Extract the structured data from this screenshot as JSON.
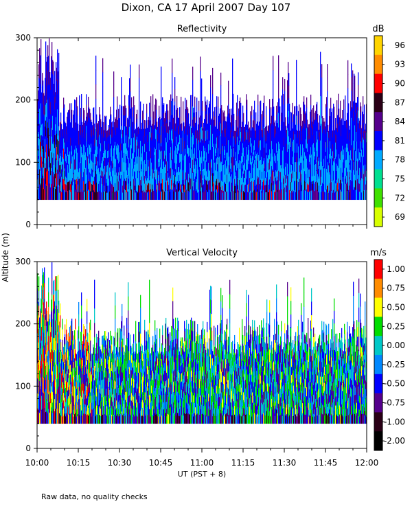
{
  "chart_data": {
    "type": "heatmap",
    "title": "Dixon, CA 17 April 2007  Day 107",
    "ylabel": "Altitude (m)",
    "xlabel": "UT   (PST + 8)",
    "note": "Raw data, no quality checks",
    "x_ticks": [
      "10:00",
      "10:15",
      "10:30",
      "10:45",
      "11:00",
      "11:15",
      "11:30",
      "11:45",
      "12:00"
    ],
    "x_range_minutes": [
      0,
      120
    ],
    "panels": [
      {
        "title": "Reflectivity",
        "units": "dB",
        "variable": "reflectivity",
        "y_range": [
          0,
          300
        ],
        "y_ticks": [
          "0",
          "100",
          "200",
          "300"
        ],
        "data_floor_m": 40,
        "colorbar": [
          {
            "label": "96",
            "color": "#ffd400"
          },
          {
            "label": "93",
            "color": "#ff8c00"
          },
          {
            "label": "90",
            "color": "#ff0000"
          },
          {
            "label": "87",
            "color": "#2a0016"
          },
          {
            "label": "84",
            "color": "#55008c"
          },
          {
            "label": "81",
            "color": "#0000ff"
          },
          {
            "label": "78",
            "color": "#00aaff"
          },
          {
            "label": "75",
            "color": "#00e090"
          },
          {
            "label": "72",
            "color": "#40e000"
          },
          {
            "label": "69",
            "color": "#d8ff00"
          }
        ]
      },
      {
        "title": "Vertical Velocity",
        "units": "m/s",
        "variable": "velocity",
        "y_range": [
          0,
          300
        ],
        "y_ticks": [
          "0",
          "100",
          "200",
          "300"
        ],
        "data_floor_m": 40,
        "colorbar": [
          {
            "label": "1.00",
            "color": "#ff0000"
          },
          {
            "label": "0.75",
            "color": "#ff8c00"
          },
          {
            "label": "0.50",
            "color": "#ffff00"
          },
          {
            "label": "0.25",
            "color": "#00dd00"
          },
          {
            "label": "0.00",
            "color": "#00c8c8"
          },
          {
            "label": "-0.25",
            "color": "#0088ff"
          },
          {
            "label": "-0.50",
            "color": "#0000ff"
          },
          {
            "label": "-0.75",
            "color": "#55008c"
          },
          {
            "label": "-1.00",
            "color": "#2a0016"
          },
          {
            "label": "-2.00",
            "color": "#000000"
          }
        ]
      }
    ]
  }
}
